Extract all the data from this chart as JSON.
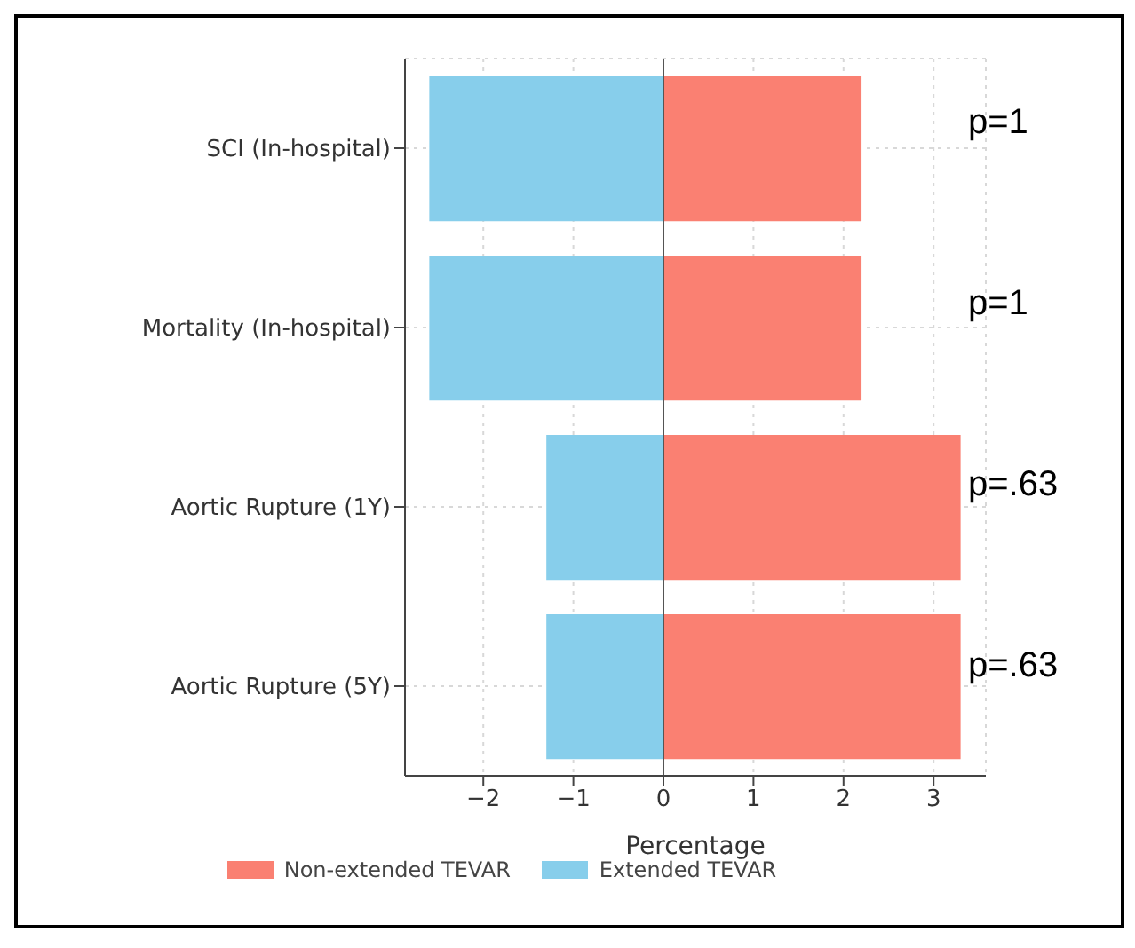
{
  "chart_data": {
    "type": "bar",
    "orientation": "horizontal",
    "stacked": true,
    "categories": [
      "SCI (In-hospital)",
      "Mortality (In-hospital)",
      "Aortic Rupture (1Y)",
      "Aortic Rupture (5Y)"
    ],
    "series": [
      {
        "name": "Non-extended TEVAR",
        "color": "#fa8072",
        "values": [
          2.2,
          2.2,
          3.3,
          3.3
        ]
      },
      {
        "name": "Extended TEVAR",
        "color": "#87ceeb",
        "values": [
          -2.6,
          -2.6,
          -1.3,
          -1.3
        ]
      }
    ],
    "xlabel": "Percentage",
    "xlim": [
      -2.87,
      3.58
    ],
    "xticks": [
      -2,
      -1,
      0,
      1,
      2,
      3
    ],
    "ref_lines": [
      {
        "axis": "x",
        "value": 0,
        "color": "#555555"
      }
    ],
    "annotations": [
      "p=1",
      "p=1",
      "p=.63",
      "p=.63"
    ],
    "grid": true,
    "legend": "bottom"
  }
}
